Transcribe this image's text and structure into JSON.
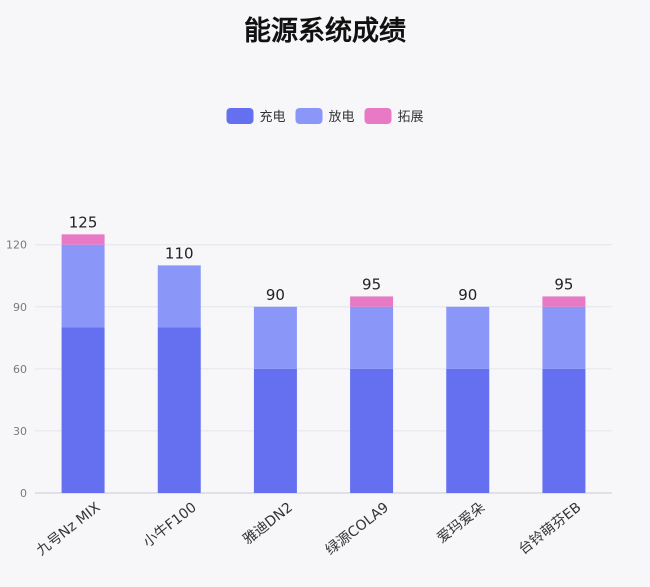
{
  "chart_data": {
    "type": "bar",
    "stacked": true,
    "title": "能源系统成绩",
    "categories": [
      "九号Nz MIX",
      "小牛F100",
      "雅迪DN2",
      "绿源COLA9",
      "爱玛爱朵",
      "台铃萌芬EB"
    ],
    "series": [
      {
        "name": "充电",
        "color": "#6470f0",
        "values": [
          80,
          80,
          60,
          60,
          60,
          60
        ]
      },
      {
        "name": "放电",
        "color": "#8a97f8",
        "values": [
          40,
          30,
          30,
          30,
          30,
          30
        ]
      },
      {
        "name": "拓展",
        "color": "#e879c5",
        "values": [
          5,
          0,
          0,
          5,
          0,
          5
        ]
      }
    ],
    "totals": [
      125,
      110,
      90,
      95,
      90,
      95
    ],
    "yticks": [
      0,
      30,
      60,
      90,
      120
    ],
    "ylim": [
      0,
      130
    ],
    "grid": true,
    "legend": "top-center"
  }
}
